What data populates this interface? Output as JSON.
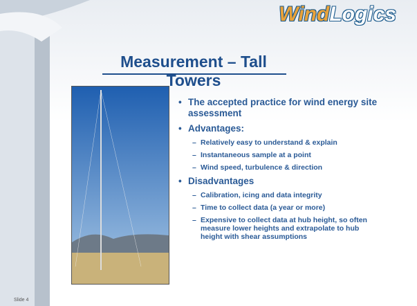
{
  "logo": {
    "part1": "Wind",
    "part2": "Logics"
  },
  "title": "Measurement – Tall Towers",
  "bullets": [
    {
      "text": "The accepted practice for wind energy site assessment",
      "subs": []
    },
    {
      "text": "Advantages:",
      "subs": [
        "Relatively easy to understand & explain",
        "Instantaneous sample at a point",
        "Wind speed, turbulence & direction"
      ]
    },
    {
      "text": "Disadvantages",
      "subs": [
        "Calibration, icing and data integrity",
        "Time to collect data (a year or more)",
        "Expensive to collect data at hub height, so often measure lower heights and extrapolate to hub height with shear assumptions"
      ]
    }
  ],
  "footer": "Slide 4"
}
